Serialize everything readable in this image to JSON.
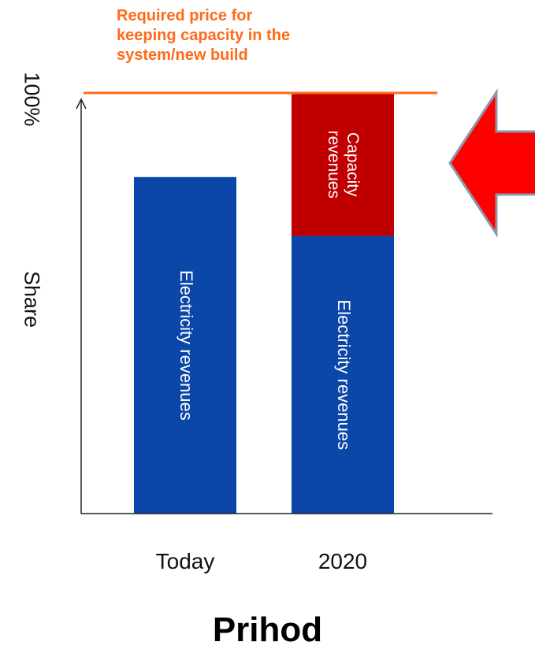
{
  "chart_data": {
    "type": "bar",
    "categories": [
      "Today",
      "2020"
    ],
    "series": [
      {
        "name": "Electricity revenues",
        "values": [
          80,
          66
        ],
        "color": "#0b47a8",
        "label_color": "#ffffff"
      },
      {
        "name": "Capacity revenues",
        "values": [
          0,
          34
        ],
        "color": "#c00000",
        "label_color": "#ffffff"
      }
    ],
    "ylim": [
      0,
      100
    ],
    "ylabel": "Share",
    "ytick_label": "100%",
    "reference_line": {
      "value": 100,
      "label": "Required price for keeping capacity in the system/new build",
      "color": "#ff6a1a"
    },
    "arrow": {
      "direction": "left",
      "color": "#ff0000"
    },
    "grid": false
  },
  "annotation_lines": [
    "Required price for",
    "keeping capacity in the",
    "system/new build"
  ],
  "footer_title": "Prihod"
}
